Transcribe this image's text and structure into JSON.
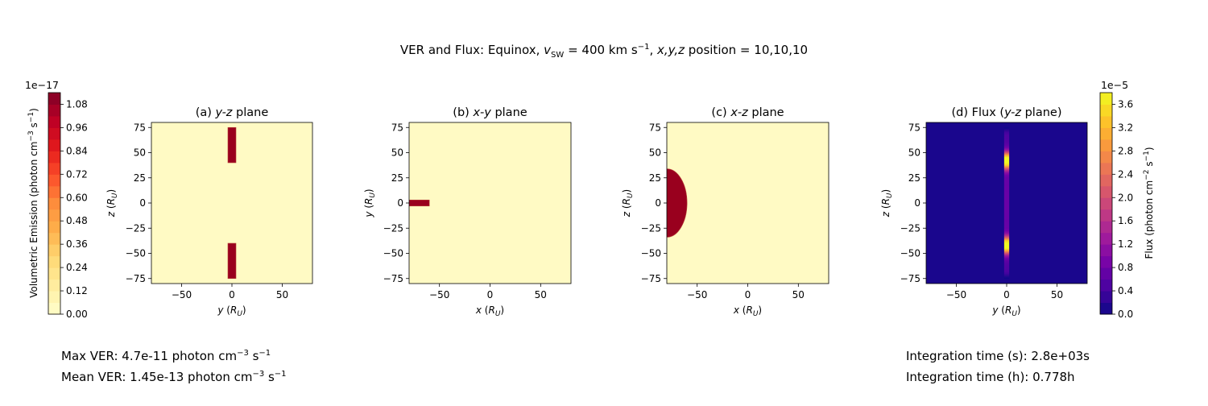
{
  "figure": {
    "title_prefix": "VER and Flux: Equinox, ",
    "title_v": "v",
    "title_v_sub": "SW",
    "title_eq": " = 400 km s",
    "title_eq_sup": "−1",
    "title_pos_prefix": ", ",
    "title_xyz": "x,y,z",
    "title_pos_suffix": " position = 10,10,10"
  },
  "stats": {
    "max_label": "Max VER: 4.7e-11 photon cm",
    "max_sup1": "−3",
    "max_unit_s": " s",
    "max_sup2": "−1",
    "mean_label": "Mean VER: 1.45e-13 photon cm",
    "mean_sup1": "−3",
    "mean_unit_s": " s",
    "mean_sup2": "−1",
    "int_s": "Integration time (s): 2.8e+03s",
    "int_h": "Integration time (h): 0.778h"
  },
  "chart_data": [
    {
      "type": "heatmap",
      "panel": "a",
      "title_prefix": "(a) ",
      "title_var": "y-z",
      "title_suffix": " plane",
      "xlabel_var": "y",
      "ylabel_var": "z",
      "unit_paren_open": " (",
      "unit_main": "R",
      "unit_sub": "U",
      "unit_paren_close": ")",
      "xlim": [
        -80,
        80
      ],
      "ylim": [
        -80,
        80
      ],
      "xticks": [
        "−50",
        "0",
        "50"
      ],
      "xtick_values": [
        -50,
        0,
        50
      ],
      "yticks": [
        "75",
        "50",
        "25",
        "0",
        "−25",
        "−50",
        "−75"
      ],
      "ytick_values": [
        75,
        50,
        25,
        0,
        -25,
        -50,
        -75
      ],
      "background_color": "#fffac4",
      "high_color": "#99001e",
      "regions": [
        {
          "shape": "rect",
          "x": [
            -4,
            4
          ],
          "y": [
            40,
            75
          ]
        },
        {
          "shape": "rect",
          "x": [
            -4,
            4
          ],
          "y": [
            -75,
            -40
          ]
        }
      ]
    },
    {
      "type": "heatmap",
      "panel": "b",
      "title_prefix": "(b) ",
      "title_var": "x-y",
      "title_suffix": " plane",
      "xlabel_var": "x",
      "ylabel_var": "y",
      "unit_paren_open": " (",
      "unit_main": "R",
      "unit_sub": "U",
      "unit_paren_close": ")",
      "xlim": [
        -80,
        80
      ],
      "ylim": [
        -80,
        80
      ],
      "xticks": [
        "−50",
        "0",
        "50"
      ],
      "xtick_values": [
        -50,
        0,
        50
      ],
      "yticks": [
        "75",
        "50",
        "25",
        "0",
        "−25",
        "−50",
        "−75"
      ],
      "ytick_values": [
        75,
        50,
        25,
        0,
        -25,
        -50,
        -75
      ],
      "background_color": "#fffac4",
      "high_color": "#99001e",
      "regions": [
        {
          "shape": "rect",
          "x": [
            -80,
            -60
          ],
          "y": [
            -3,
            3
          ]
        }
      ]
    },
    {
      "type": "heatmap",
      "panel": "c",
      "title_prefix": "(c) ",
      "title_var": "x-z",
      "title_suffix": " plane",
      "xlabel_var": "x",
      "ylabel_var": "z",
      "unit_paren_open": " (",
      "unit_main": "R",
      "unit_sub": "U",
      "unit_paren_close": ")",
      "xlim": [
        -80,
        80
      ],
      "ylim": [
        -80,
        80
      ],
      "xticks": [
        "−50",
        "0",
        "50"
      ],
      "xtick_values": [
        -50,
        0,
        50
      ],
      "yticks": [
        "75",
        "50",
        "25",
        "0",
        "−25",
        "−50",
        "−75"
      ],
      "ytick_values": [
        75,
        50,
        25,
        0,
        -25,
        -50,
        -75
      ],
      "background_color": "#fffac4",
      "high_color": "#99001e",
      "regions": [
        {
          "shape": "half-disk",
          "x_edge": -80,
          "x_apex": -60,
          "y": [
            -34,
            34
          ]
        }
      ]
    },
    {
      "type": "heatmap",
      "panel": "d",
      "title_prefix": "(d) Flux (",
      "title_var": "y-z",
      "title_suffix": " plane)",
      "xlabel_var": "y",
      "ylabel_var": "z",
      "unit_paren_open": " (",
      "unit_main": "R",
      "unit_sub": "U",
      "unit_paren_close": ")",
      "xlim": [
        -80,
        80
      ],
      "ylim": [
        -80,
        80
      ],
      "xticks": [
        "−50",
        "0",
        "50"
      ],
      "xtick_values": [
        -50,
        0,
        50
      ],
      "yticks": [
        "75",
        "50",
        "25",
        "0",
        "−25",
        "−50",
        "−75"
      ],
      "ytick_values": [
        75,
        50,
        25,
        0,
        -25,
        -50,
        -75
      ],
      "background_color": "#1a068d",
      "profile": {
        "x_center": 0,
        "x_halfwidth": 2.5,
        "y_extent": [
          -75,
          75
        ],
        "peaks": [
          {
            "y": 42,
            "level": 1.0
          },
          {
            "y": -42,
            "level": 1.0
          }
        ]
      }
    }
  ],
  "colorbar_ver": {
    "label": "Volumetric Emission (photon cm",
    "label_sup1": "−3",
    "label_mid": " s",
    "label_sup2": "−1",
    "label_end": ")",
    "exponent": "1e−17",
    "ticks": [
      "0.00",
      "0.12",
      "0.24",
      "0.36",
      "0.48",
      "0.60",
      "0.72",
      "0.84",
      "0.96",
      "1.08"
    ],
    "tick_values": [
      0.0,
      0.12,
      0.24,
      0.36,
      0.48,
      0.6,
      0.72,
      0.84,
      0.96,
      1.08
    ],
    "vmin": 0.0,
    "vmax": 1.14,
    "levels": 19,
    "colormap": "YlOrRd",
    "colors": [
      "#ffffcc",
      "#ffeda0",
      "#fed976",
      "#feb24c",
      "#fd8d3c",
      "#fc4e2a",
      "#e31a1c",
      "#bd0026",
      "#800026"
    ]
  },
  "colorbar_flux": {
    "label": "Flux (photon cm",
    "label_sup1": "−2",
    "label_mid": " s",
    "label_sup2": "−1",
    "label_end": ")",
    "exponent": "1e−5",
    "ticks": [
      "0.0",
      "0.4",
      "0.8",
      "1.2",
      "1.6",
      "2.0",
      "2.4",
      "2.8",
      "3.2",
      "3.6"
    ],
    "tick_values": [
      0.0,
      0.4,
      0.8,
      1.2,
      1.6,
      2.0,
      2.4,
      2.8,
      3.2,
      3.6
    ],
    "vmin": 0.0,
    "vmax": 3.8,
    "levels": 19,
    "colormap": "plasma",
    "colors": [
      "#0d0887",
      "#46039f",
      "#7201a8",
      "#9c179e",
      "#bd3786",
      "#d8576b",
      "#ed7953",
      "#fb9f3a",
      "#fdca26",
      "#f0f921"
    ]
  }
}
